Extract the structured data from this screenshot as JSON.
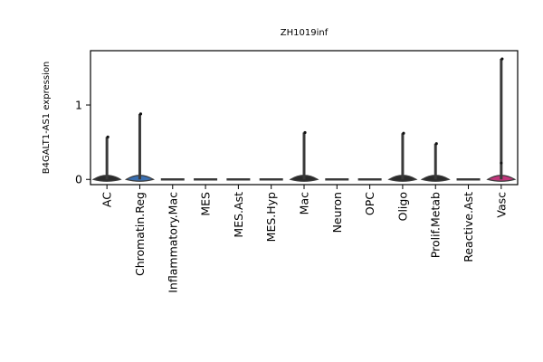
{
  "chart_data": {
    "type": "violin",
    "title": "ZH1019inf",
    "xlabel": "",
    "ylabel": "B4GALT1-AS1 expression",
    "ylim": [
      -0.07,
      1.73
    ],
    "yticks": [
      0,
      1
    ],
    "grid": false,
    "legend": "none",
    "categories": [
      "AC",
      "Chromatin.Reg",
      "Inflammatory.Mac",
      "MES",
      "MES.Ast",
      "MES.Hyp",
      "Mac",
      "Neuron",
      "OPC",
      "Oligo",
      "Prolif.Metab",
      "Reactive.Ast",
      "Vasc"
    ],
    "max_values": [
      0.57,
      0.88,
      0.0,
      0.0,
      0.0,
      0.0,
      0.63,
      0.0,
      0.0,
      0.62,
      0.48,
      0.0,
      1.62
    ],
    "inner_marks": [
      null,
      null,
      null,
      null,
      null,
      null,
      null,
      null,
      null,
      null,
      null,
      null,
      0.22
    ],
    "violin_colors": [
      "#2b2b2b",
      "#3a6fb0",
      "#2b2b2b",
      "#2b2b2b",
      "#2b2b2b",
      "#2b2b2b",
      "#2b2b2b",
      "#2b2b2b",
      "#2b2b2b",
      "#2b2b2b",
      "#2b2b2b",
      "#2b2b2b",
      "#c2377c"
    ],
    "line_color": "#3a3a3a"
  }
}
